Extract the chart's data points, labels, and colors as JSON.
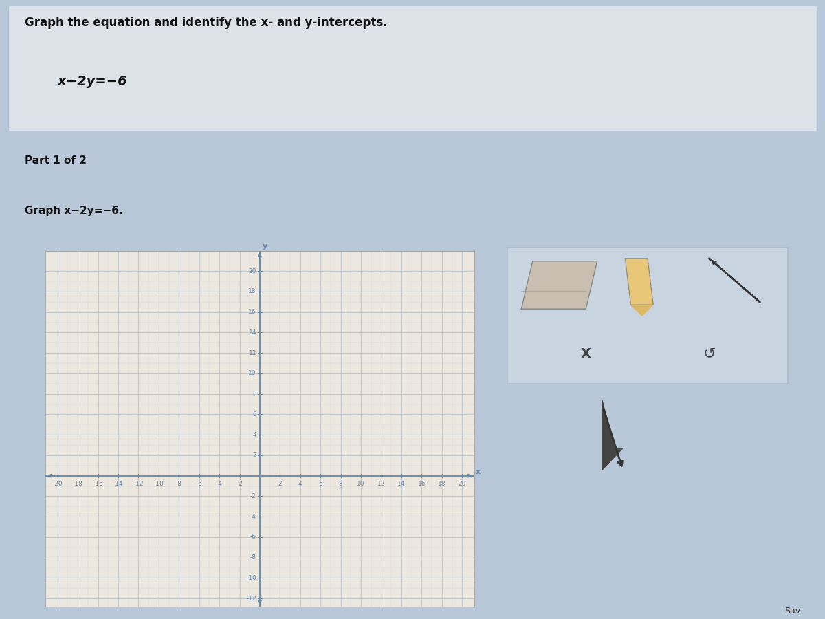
{
  "main_title": "Graph the equation and identify the x- and y-intercepts.",
  "equation": "x−2y=−6",
  "part_label": "Part 1 of 2",
  "graph_instruction": "Graph x−2y=−6.",
  "x_label": "x",
  "y_label": "y",
  "x_min": -20,
  "x_max": 20,
  "y_min": -12,
  "y_max": 20,
  "tick_step": 2,
  "bg_outer": "#b8c8d8",
  "bg_top_section": "#d8dde3",
  "bg_part_banner": "#a8bccf",
  "bg_instr_section": "#d0d8e2",
  "bg_bottom_section": "#b8c8d8",
  "bg_graph": "#ede8df",
  "grid_color_major": "#b8c4d0",
  "grid_color_minor": "#ccd4de",
  "axis_color": "#6688aa",
  "tick_label_color": "#6688aa",
  "tick_label_fontsize": 6.5,
  "axis_label_fontsize": 8,
  "title_fontsize": 12,
  "equation_fontsize": 14,
  "part_fontsize": 11,
  "instruction_fontsize": 11,
  "graph_border_color": "#aaaaaa",
  "tool_panel_bg": "#c8d4e0",
  "tool_panel_border": "#aabbcc"
}
